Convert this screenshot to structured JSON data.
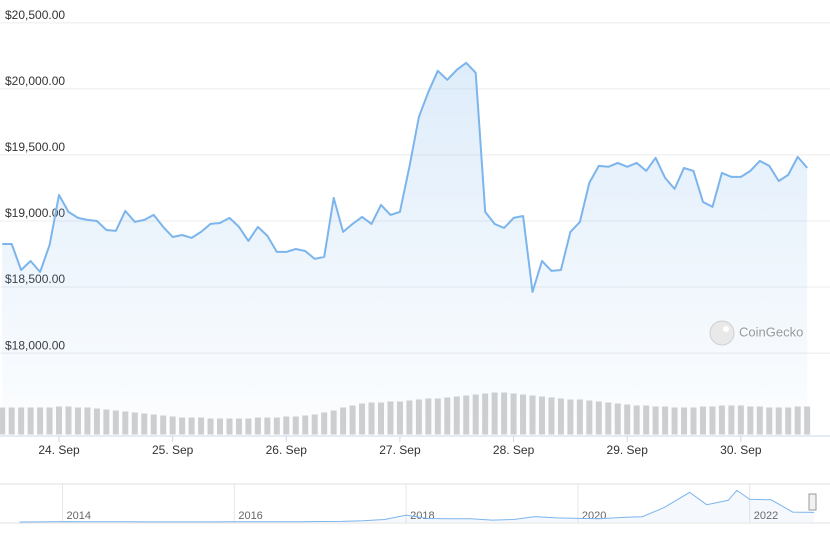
{
  "chart_data": [
    {
      "type": "line",
      "color": "#7cb5ec",
      "categories": [
        null,
        null,
        null,
        null,
        null,
        null,
        "24. Sep",
        null,
        null,
        null,
        null,
        null,
        null,
        null,
        null,
        null,
        null,
        null,
        "25. Sep",
        null,
        null,
        null,
        null,
        null,
        null,
        null,
        null,
        null,
        null,
        null,
        "26. Sep",
        null,
        null,
        null,
        null,
        null,
        null,
        null,
        null,
        null,
        null,
        null,
        "27. Sep",
        null,
        null,
        null,
        null,
        null,
        null,
        null,
        null,
        null,
        null,
        null,
        "28. Sep",
        null,
        null,
        null,
        null,
        null,
        null,
        null,
        null,
        null,
        null,
        null,
        "29. Sep",
        null,
        null,
        null,
        null,
        null,
        null,
        null,
        null,
        null,
        null,
        null,
        "30. Sep",
        null,
        null,
        null,
        null,
        null,
        null,
        null
      ],
      "values": [
        18826,
        18826,
        18629,
        18697,
        18614,
        18819,
        19197,
        19069,
        19023,
        19008,
        19000,
        18932,
        18925,
        19076,
        18993,
        19008,
        19046,
        18955,
        18879,
        18894,
        18872,
        18917,
        18978,
        18985,
        19023,
        18955,
        18849,
        18955,
        18887,
        18766,
        18766,
        18788,
        18773,
        18713,
        18728,
        19175,
        18917,
        18978,
        19031,
        18978,
        19122,
        19046,
        19069,
        19410,
        19788,
        19978,
        20137,
        20069,
        20144,
        20197,
        20122,
        19069,
        18978,
        18947,
        19023,
        19038,
        18463,
        18697,
        18622,
        18629,
        18917,
        18993,
        19288,
        19417,
        19410,
        19440,
        19410,
        19440,
        19379,
        19478,
        19326,
        19243,
        19402,
        19379,
        19144,
        19107,
        19364,
        19334,
        19334,
        19379,
        19455,
        19417,
        19303,
        19349,
        19485,
        19402
      ],
      "volume": [
        28,
        28,
        28,
        28,
        28,
        28,
        29,
        29,
        28,
        28,
        27,
        26,
        25,
        24,
        23,
        22,
        21,
        20,
        19,
        18,
        18,
        18,
        17,
        17,
        17,
        17,
        17,
        18,
        18,
        18,
        19,
        19,
        20,
        21,
        23,
        25,
        28,
        30,
        32,
        33,
        33,
        34,
        34,
        35,
        36,
        37,
        37,
        38,
        39,
        40,
        41,
        42,
        43,
        43,
        42,
        41,
        40,
        39,
        38,
        37,
        36,
        36,
        35,
        34,
        33,
        32,
        31,
        30,
        30,
        29,
        29,
        28,
        28,
        28,
        29,
        29,
        30,
        30,
        30,
        29,
        29,
        28,
        28,
        28,
        29,
        29
      ],
      "volume_color": "#cfcfcf",
      "ylim": [
        17380,
        20650
      ],
      "yticks": [
        {
          "value": 18000,
          "label": "$18,000.00"
        },
        {
          "value": 18500,
          "label": "$18,500.00"
        },
        {
          "value": 19000,
          "label": "$19,000.00"
        },
        {
          "value": 19500,
          "label": "$19,500.00"
        },
        {
          "value": 20000,
          "label": "$20,000.00"
        },
        {
          "value": 20500,
          "label": "$20,500.00"
        }
      ],
      "grid": true,
      "watermark": "CoinGecko"
    },
    {
      "type": "line",
      "color": "#7cb5ec",
      "x": [
        2013.5,
        2013.75,
        2014,
        2014.25,
        2014.5,
        2014.75,
        2015,
        2015.25,
        2015.5,
        2015.75,
        2016,
        2016.25,
        2016.5,
        2016.75,
        2017,
        2017.25,
        2017.5,
        2017.75,
        2018,
        2018.25,
        2018.5,
        2018.75,
        2019,
        2019.25,
        2019.5,
        2019.75,
        2020,
        2020.25,
        2020.5,
        2020.75,
        2021,
        2021.3,
        2021.5,
        2021.75,
        2021.85,
        2022,
        2022.25,
        2022.5,
        2022.75
      ],
      "values": [
        100,
        200,
        800,
        450,
        600,
        380,
        250,
        240,
        280,
        250,
        430,
        420,
        650,
        620,
        1000,
        1200,
        2500,
        5000,
        14000,
        7000,
        6500,
        6600,
        3800,
        5000,
        11000,
        8300,
        7200,
        6600,
        9200,
        10800,
        29000,
        60000,
        35000,
        44000,
        64000,
        46000,
        45000,
        20000,
        19500
      ],
      "xlim": [
        2013.33,
        2022.76
      ],
      "ylim": [
        0,
        75000
      ],
      "xticks": [
        2014,
        2016,
        2018,
        2020,
        2022
      ]
    }
  ]
}
